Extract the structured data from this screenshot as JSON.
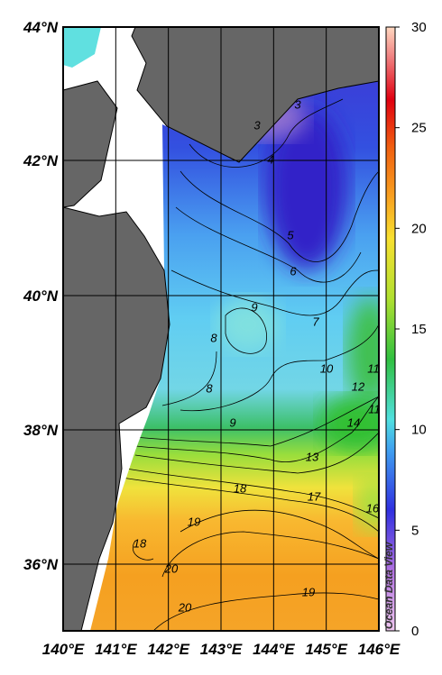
{
  "map": {
    "y_axis_labels": [
      "44°N",
      "42°N",
      "40°N",
      "38°N",
      "36°N"
    ],
    "x_axis_labels": [
      "140°E",
      "141°E",
      "142°E",
      "143°E",
      "144°E",
      "145°E",
      "146°E"
    ],
    "colorbar": {
      "lim": [
        0,
        30
      ],
      "ticks": [
        0,
        5,
        10,
        15,
        20,
        25,
        30
      ]
    },
    "contour_labels": [
      3,
      3,
      4,
      5,
      6,
      7,
      8,
      8,
      9,
      9,
      10,
      11,
      12,
      14,
      11,
      13,
      18,
      17,
      16,
      19,
      18,
      20,
      20,
      19
    ],
    "watermark": "Ocean Data View"
  }
}
